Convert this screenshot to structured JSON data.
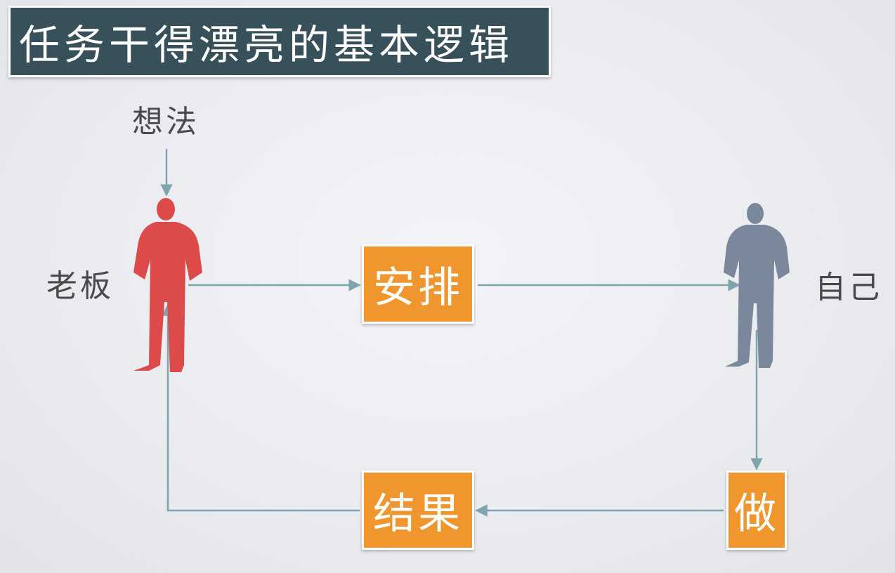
{
  "title": "任务干得漂亮的基本逻辑",
  "labels": {
    "idea": "想法",
    "boss": "老板",
    "self": "自己"
  },
  "boxes": {
    "arrange": "安排",
    "result": "结果",
    "do": "做"
  },
  "colors": {
    "title_bg": "#385059",
    "box_fill": "#f0962e",
    "boss_figure": "#dd4a4a",
    "self_figure": "#7b889c",
    "arrow": "#7ea4ad"
  }
}
